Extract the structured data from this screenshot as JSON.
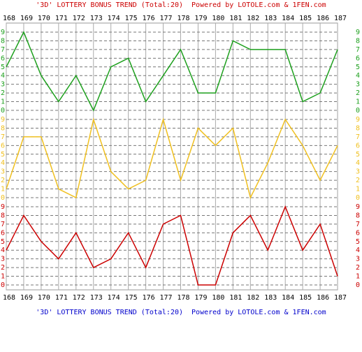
{
  "chart_data": {
    "type": "line",
    "title": "'3D' LOTTERY BONUS TREND (Total:20)  Powered by LOTOLE.com & 1FEN.com",
    "categories": [
      "168",
      "169",
      "170",
      "171",
      "172",
      "173",
      "174",
      "175",
      "176",
      "177",
      "178",
      "179",
      "180",
      "181",
      "182",
      "183",
      "184",
      "185",
      "186",
      "187"
    ],
    "ylim": [
      0,
      9
    ],
    "yticks": [
      0,
      1,
      2,
      3,
      4,
      5,
      6,
      7,
      8,
      9
    ],
    "grid": true,
    "series": [
      {
        "color": "#1ea01e",
        "values": [
          5,
          9,
          4,
          1,
          4,
          0,
          5,
          6,
          1,
          4,
          7,
          2,
          2,
          8,
          7,
          7,
          7,
          1,
          2,
          7
        ]
      },
      {
        "color": "#f0c020",
        "values": [
          1,
          7,
          7,
          1,
          0,
          9,
          3,
          1,
          2,
          9,
          2,
          8,
          6,
          8,
          0,
          4,
          9,
          6,
          2,
          6
        ]
      },
      {
        "color": "#cc0000",
        "values": [
          4,
          8,
          5,
          3,
          6,
          2,
          3,
          6,
          2,
          7,
          8,
          0,
          0,
          6,
          8,
          4,
          9,
          4,
          7,
          1
        ]
      }
    ]
  }
}
